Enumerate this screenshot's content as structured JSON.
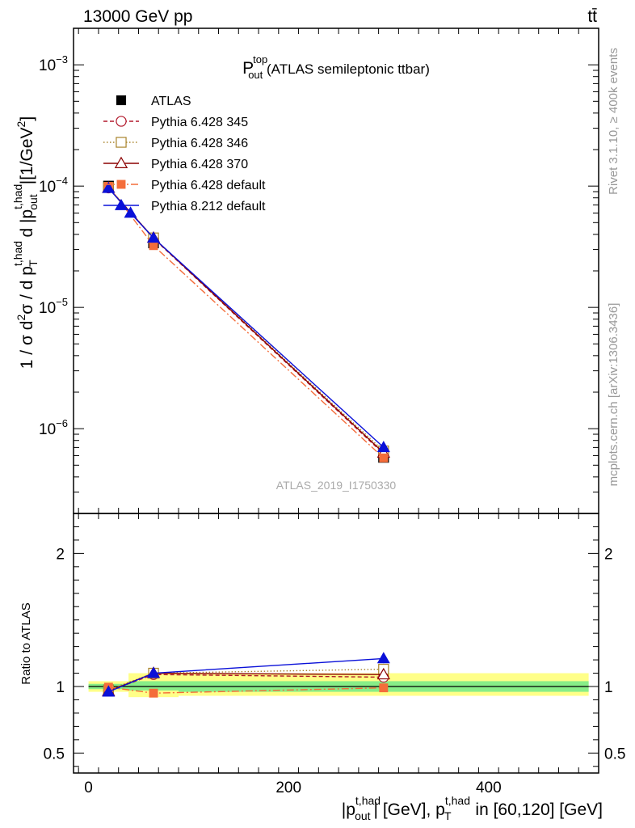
{
  "header": {
    "energy_label": "13000 GeV pp",
    "process_label": "tt̄"
  },
  "side_labels": {
    "rivet": "Rivet 3.1.10, ≥ 400k events",
    "mcplots": "mcplots.cern.ch [arXiv:1306.3436]"
  },
  "watermark": "ATLAS_2019_I1750330",
  "chart_data": {
    "type": "line",
    "title": {
      "main": "P",
      "main_sup": "top",
      "main_sub": "out",
      "suffix": " (ATLAS semileptonic ttbar)"
    },
    "xlabel": {
      "p1": "|p",
      "p1_sup": "t,had",
      "p1_sub": "out",
      "p2": "| [GeV], p",
      "p2_sup": "t,had",
      "p2_sub": "T",
      "p3": " in [60,120] [GeV]"
    },
    "ylabel": {
      "a": "1 / σ d",
      "a_sup": "2",
      "b": "σ / d p",
      "b_sup": "t,had",
      "b_sub": "T",
      "c": " d |p",
      "c_sup": "t,had",
      "c_sub": "out",
      "d": "|[1/GeV",
      "d_sup": "2",
      "e": "]"
    },
    "ratio_ylabel": "Ratio to ATLAS",
    "xlim": [
      -15,
      510
    ],
    "ylim_log": [
      2e-07,
      0.002
    ],
    "ratio_ylim": [
      0.35,
      2.3
    ],
    "x_ticks": [
      0,
      200,
      400
    ],
    "x_tick_labels": [
      "0",
      "200",
      "400"
    ],
    "y_ticks": [
      1e-06,
      1e-05,
      0.0001,
      0.001
    ],
    "y_tick_labels": [
      {
        "base": "10",
        "exp": "−6"
      },
      {
        "base": "10",
        "exp": "−5"
      },
      {
        "base": "10",
        "exp": "−4"
      },
      {
        "base": "10",
        "exp": "−3"
      }
    ],
    "ratio_ticks": [
      0.5,
      1,
      2
    ],
    "ratio_tick_labels": [
      "0.5",
      "1",
      "2"
    ],
    "bins": [
      {
        "lo": 0,
        "hi": 40,
        "center": 20
      },
      {
        "lo": 40,
        "hi": 90,
        "center": 65
      },
      {
        "lo": 90,
        "hi": 500,
        "center": 295
      }
    ],
    "data": {
      "name": "ATLAS",
      "values": [
        0.0001,
        3.4e-05,
        5.8e-07
      ],
      "band_inner": [
        [
          0.98,
          1.02
        ],
        [
          0.97,
          1.04
        ],
        [
          0.96,
          1.04
        ]
      ],
      "band_outer": [
        [
          0.96,
          1.04
        ],
        [
          0.92,
          1.1
        ],
        [
          0.93,
          1.1
        ]
      ]
    },
    "series": [
      {
        "name": "Pythia 6.428 345",
        "color": "#b2182b",
        "dash": "5,3",
        "marker": "open-circle",
        "ratios": [
          0.965,
          1.09,
          1.07
        ],
        "ratio_err": [
          0.01,
          0.01,
          0.03
        ]
      },
      {
        "name": "Pythia 6.428 346",
        "color": "#a8832a",
        "dash": "1.5,2.5",
        "marker": "open-square",
        "ratios": [
          0.975,
          1.1,
          1.13
        ],
        "ratio_err": [
          0.01,
          0.01,
          0.03
        ]
      },
      {
        "name": "Pythia 6.428 370",
        "color": "#8b0000",
        "dash": "",
        "marker": "open-triangle",
        "ratios": [
          0.965,
          1.1,
          1.09
        ],
        "ratio_err": [
          0.01,
          0.01,
          0.03
        ]
      },
      {
        "name": "Pythia 6.428 default",
        "color": "#f46d3a",
        "dash": "9,3,2,3",
        "marker": "filled-square",
        "ratios": [
          0.995,
          0.95,
          0.99
        ],
        "ratio_err": [
          0.01,
          0.01,
          0.02
        ]
      },
      {
        "name": "Pythia 8.212 default",
        "color": "#0a10d8",
        "dash": "",
        "marker": "filled-triangle",
        "ratios": [
          0.96,
          1.1,
          1.21
        ],
        "ratio_err": [
          0.01,
          0.015,
          0.035
        ]
      }
    ],
    "extra_points": [
      {
        "series": "Pythia 8.212 default",
        "x": 42,
        "value": 6e-05
      }
    ]
  }
}
